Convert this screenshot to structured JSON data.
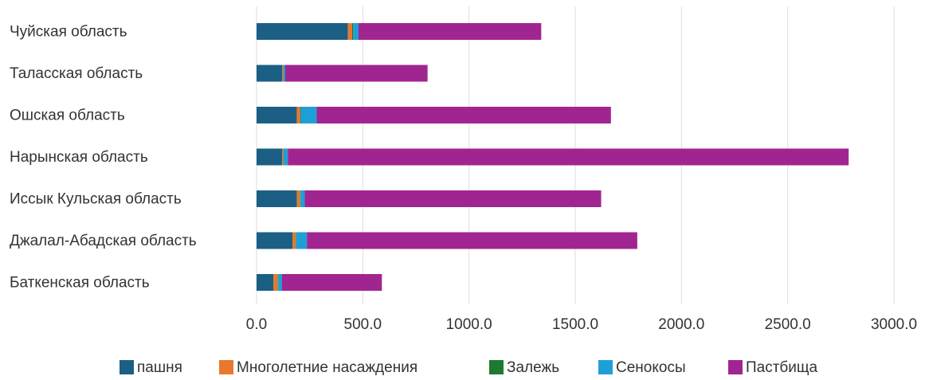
{
  "chart_data": {
    "type": "bar",
    "orientation": "horizontal",
    "stacked": true,
    "categories": [
      "Чуйская область",
      "Таласская область",
      "Ошская область",
      "Нарынская область",
      "Иссык Кульская область",
      "Джалал-Абадская область",
      "Баткенская область"
    ],
    "series": [
      {
        "name": "пашня",
        "color": "#1c5f85",
        "values": [
          430,
          120,
          190,
          120,
          190,
          170,
          80
        ]
      },
      {
        "name": "Многолетние насаждения",
        "color": "#e8792b",
        "values": [
          20,
          5,
          15,
          5,
          15,
          15,
          20
        ]
      },
      {
        "name": "Залежь",
        "color": "#1e7a30",
        "values": [
          5,
          2,
          3,
          2,
          2,
          2,
          2
        ]
      },
      {
        "name": "Сенокосы",
        "color": "#1f9fd8",
        "values": [
          25,
          8,
          75,
          20,
          20,
          50,
          18
        ]
      },
      {
        "name": "Пастбища",
        "color": "#a12591",
        "values": [
          860,
          670,
          1385,
          2640,
          1395,
          1555,
          470
        ]
      }
    ],
    "x_ticks": [
      "0.0",
      "500.0",
      "1000.0",
      "1500.0",
      "2000.0",
      "2500.0",
      "3000.0"
    ],
    "xlim": [
      0,
      3000
    ],
    "grid": "vertical",
    "legend_position": "bottom",
    "title": "",
    "xlabel": "",
    "ylabel": ""
  }
}
